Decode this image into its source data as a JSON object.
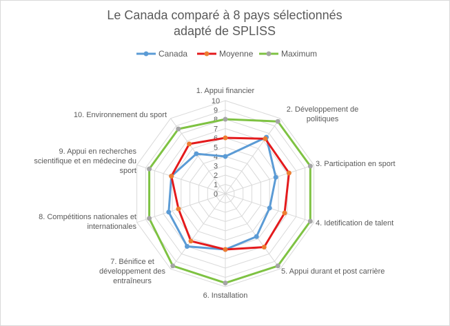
{
  "chart_data": {
    "type": "radar",
    "title": "Le Canada comparé à 8 pays sélectionnés",
    "subtitle": "adapté de SPLISS",
    "axes": [
      "1.    Appui financier",
      "2.    Développement de politiques",
      "3. Participation en sport",
      "4. Idetification de talent",
      "5. Appui durant et post carrière",
      "6. Installation",
      "7.     Bénifice et développement des entraîneurs",
      "8.  Compétitions nationales et internationales",
      "9. Appui en recherches scientifique et en médecine du sport",
      "10.  Environnement du sport"
    ],
    "rlim": [
      0,
      10
    ],
    "ticks": [
      "0",
      "1",
      "2",
      "3",
      "4",
      "5",
      "6",
      "7",
      "8",
      "9",
      "10"
    ],
    "series": [
      {
        "name": "Canada",
        "color": "#5b9bd5",
        "values": [
          4,
          7.5,
          5.7,
          5,
          5.7,
          6,
          7,
          6.4,
          6.1,
          5.3
        ]
      },
      {
        "name": "Moyenne",
        "color": "#e41a1c",
        "values": [
          6,
          7.3,
          7.2,
          6.7,
          7.1,
          6,
          6.3,
          5.3,
          6.1,
          6.6
        ]
      },
      {
        "name": "Maximum",
        "color": "#7ec242",
        "values": [
          8,
          9.6,
          9.6,
          9.6,
          9.6,
          9.6,
          9.6,
          8.6,
          8.6,
          8.6
        ]
      }
    ],
    "legend_position": "top",
    "grid": true
  }
}
